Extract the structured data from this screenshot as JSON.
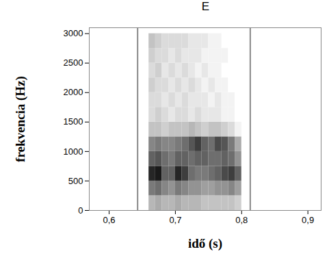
{
  "chart_data": {
    "type": "heatmap",
    "title": "E",
    "x_label": "idő (s)",
    "y_label": "frekvencia (Hz)",
    "xlim": [
      0.57,
      0.92
    ],
    "ylim": [
      0,
      3100
    ],
    "xticks": [
      {
        "value": 0.6,
        "label": "0,6"
      },
      {
        "value": 0.7,
        "label": "0,7"
      },
      {
        "value": 0.8,
        "label": "0,8"
      },
      {
        "value": 0.9,
        "label": "0,9"
      }
    ],
    "yticks": [
      0,
      500,
      1000,
      1500,
      2000,
      2500,
      3000
    ],
    "boundaries": [
      0.643,
      0.813
    ],
    "time_edges": [
      0.66,
      0.67,
      0.68,
      0.69,
      0.7,
      0.71,
      0.72,
      0.73,
      0.74,
      0.75,
      0.76,
      0.77,
      0.78,
      0.79,
      0.8
    ],
    "frequency_edges": [
      0,
      250,
      500,
      750,
      1000,
      1250,
      1500,
      1750,
      2000,
      2250,
      2500,
      2750,
      3000
    ],
    "intensity": [
      [
        0.35,
        0.4,
        0.35,
        0.35,
        0.4,
        0.35,
        0.35,
        0.35,
        0.3,
        0.3,
        0.3,
        0.3,
        0.3,
        0.25
      ],
      [
        0.6,
        0.65,
        0.55,
        0.5,
        0.6,
        0.55,
        0.5,
        0.5,
        0.45,
        0.45,
        0.5,
        0.5,
        0.55,
        0.45
      ],
      [
        0.95,
        1.0,
        0.7,
        0.7,
        0.95,
        0.85,
        0.65,
        0.6,
        0.6,
        0.65,
        0.7,
        0.8,
        0.85,
        0.7
      ],
      [
        0.7,
        0.75,
        0.65,
        0.6,
        0.7,
        0.7,
        0.65,
        0.7,
        0.7,
        0.65,
        0.65,
        0.7,
        0.65,
        0.5
      ],
      [
        0.55,
        0.6,
        0.55,
        0.55,
        0.6,
        0.65,
        0.75,
        0.85,
        0.7,
        0.65,
        0.8,
        0.75,
        0.6,
        0.4
      ],
      [
        0.3,
        0.3,
        0.25,
        0.3,
        0.3,
        0.3,
        0.35,
        0.3,
        0.25,
        0.3,
        0.3,
        0.25,
        0.2,
        0.1
      ],
      [
        0.2,
        0.25,
        0.2,
        0.15,
        0.2,
        0.2,
        0.15,
        0.2,
        0.15,
        0.15,
        0.15,
        0.1,
        0.1,
        0.05
      ],
      [
        0.2,
        0.2,
        0.15,
        0.2,
        0.15,
        0.2,
        0.15,
        0.15,
        0.15,
        0.1,
        0.15,
        0.1,
        0.1,
        0.05
      ],
      [
        0.25,
        0.2,
        0.2,
        0.15,
        0.2,
        0.15,
        0.2,
        0.15,
        0.1,
        0.15,
        0.1,
        0.1,
        0.05,
        0.05
      ],
      [
        0.2,
        0.25,
        0.15,
        0.2,
        0.15,
        0.2,
        0.15,
        0.1,
        0.15,
        0.1,
        0.1,
        0.05,
        0.05,
        0.05
      ],
      [
        0.25,
        0.2,
        0.2,
        0.15,
        0.2,
        0.15,
        0.15,
        0.15,
        0.1,
        0.1,
        0.1,
        0.1,
        0.05,
        0.05
      ],
      [
        0.3,
        0.25,
        0.2,
        0.2,
        0.2,
        0.2,
        0.15,
        0.15,
        0.15,
        0.1,
        0.1,
        0.05,
        0.05,
        0.05
      ]
    ]
  }
}
